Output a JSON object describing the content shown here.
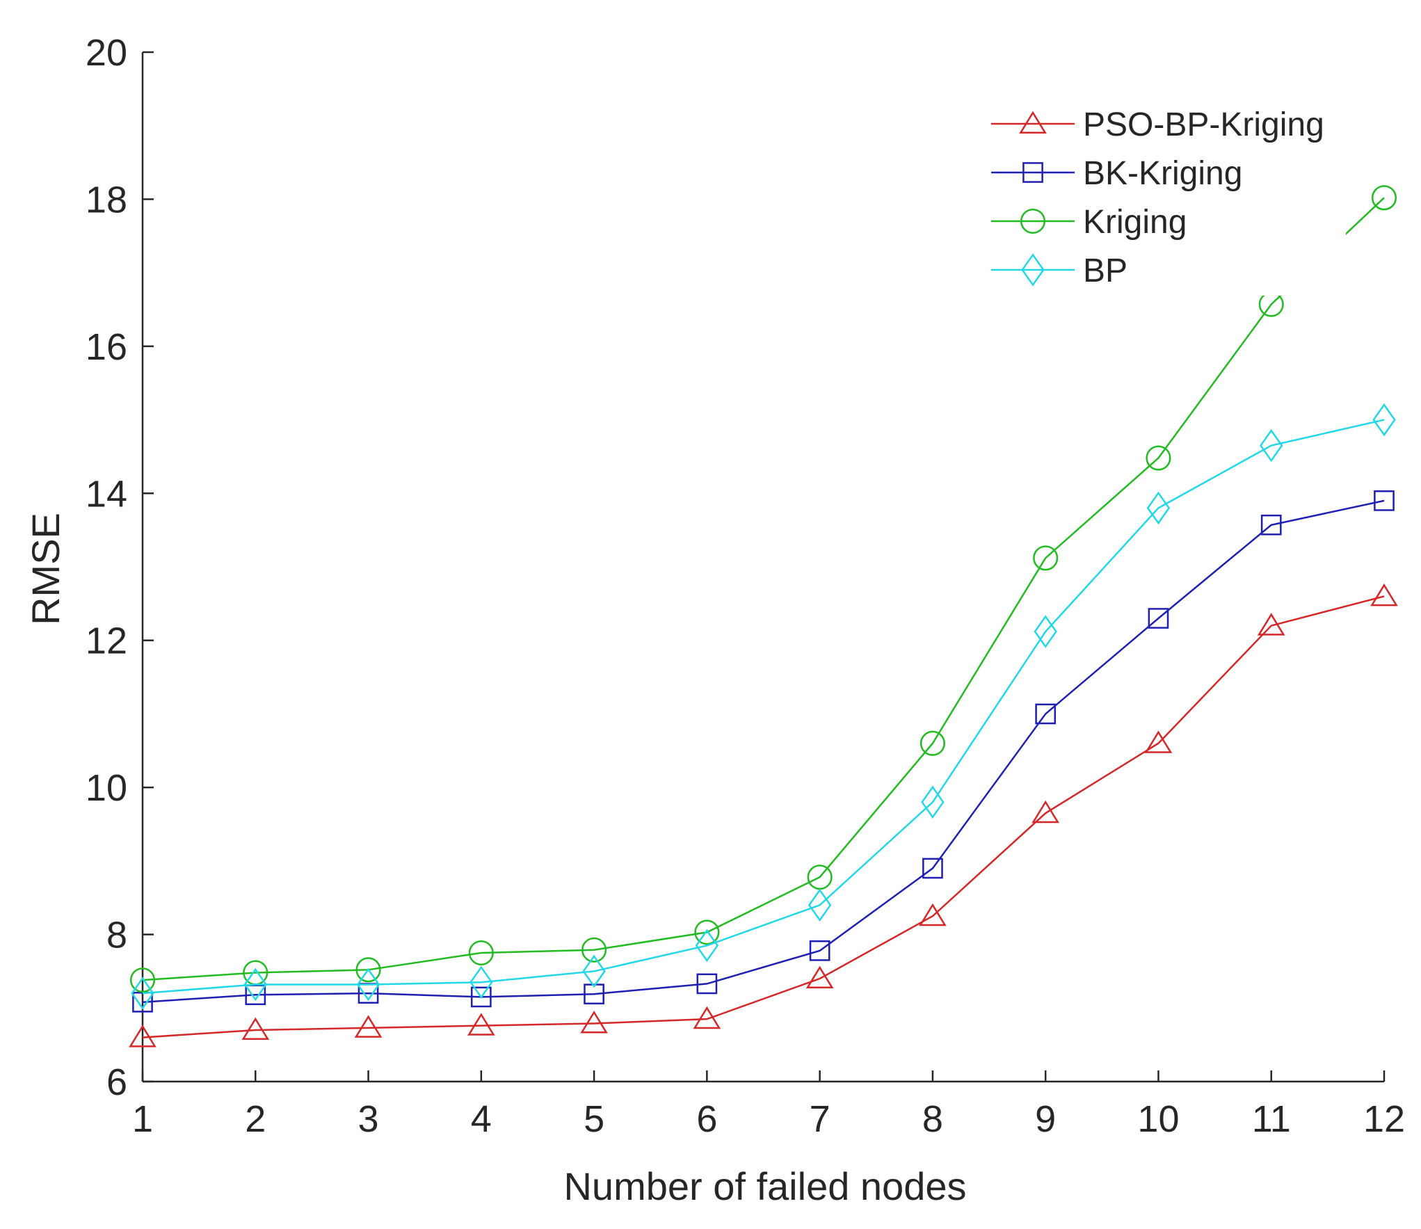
{
  "chart_data": {
    "type": "line",
    "title": "",
    "xlabel": "Number of failed nodes",
    "ylabel": "RMSE",
    "x": [
      1,
      2,
      3,
      4,
      5,
      6,
      7,
      8,
      9,
      10,
      11,
      12
    ],
    "xticks": [
      "1",
      "2",
      "3",
      "4",
      "5",
      "6",
      "7",
      "8",
      "9",
      "10",
      "11",
      "12"
    ],
    "xlim": [
      1,
      12
    ],
    "ylim": [
      6,
      20
    ],
    "yticks": [
      "6",
      "8",
      "10",
      "12",
      "14",
      "16",
      "18",
      "20"
    ],
    "ytick_values": [
      6,
      8,
      10,
      12,
      14,
      16,
      18,
      20
    ],
    "grid": false,
    "legend_position": "top-right",
    "series": [
      {
        "name": "PSO-BP-Kriging",
        "color": "#d62728",
        "marker": "triangle",
        "values": [
          6.6,
          6.7,
          6.73,
          6.76,
          6.79,
          6.85,
          7.4,
          8.25,
          9.65,
          10.6,
          12.2,
          12.6
        ]
      },
      {
        "name": "BK-Kriging",
        "color": "#1f1fb4",
        "marker": "square",
        "values": [
          7.08,
          7.18,
          7.2,
          7.15,
          7.19,
          7.33,
          7.78,
          8.9,
          11.0,
          12.3,
          13.57,
          13.9
        ]
      },
      {
        "name": "Kriging",
        "color": "#22bb22",
        "marker": "circle",
        "values": [
          7.38,
          7.48,
          7.52,
          7.75,
          7.79,
          8.03,
          8.78,
          10.6,
          13.12,
          14.48,
          16.57,
          18.02
        ]
      },
      {
        "name": "BP",
        "color": "#22d8e8",
        "marker": "diamond",
        "values": [
          7.2,
          7.32,
          7.32,
          7.35,
          7.5,
          7.85,
          8.4,
          9.8,
          12.12,
          13.8,
          14.65,
          15.0
        ]
      }
    ]
  }
}
